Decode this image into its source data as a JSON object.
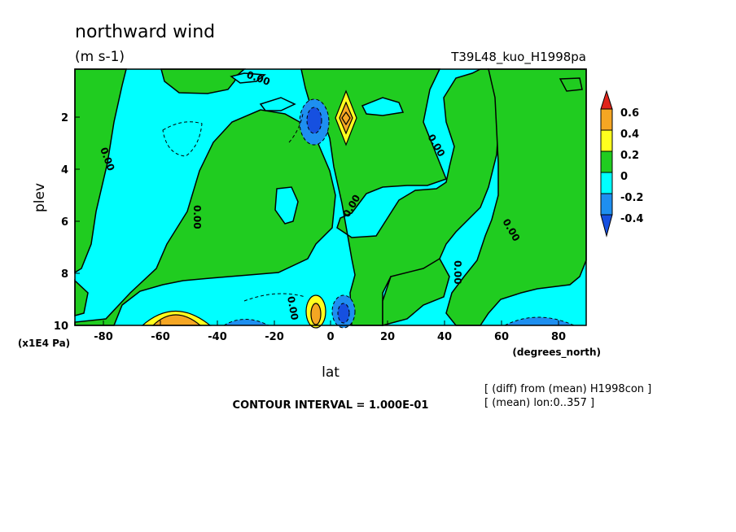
{
  "title": "northward wind",
  "units": "(m s-1)",
  "run_label": "T39L48_kuo_H1998pa",
  "chart_data": {
    "type": "heatmap",
    "variable": "northward wind",
    "xlabel": "lat",
    "x_units": "(degrees_north)",
    "ylabel": "plev",
    "y_scale": "(x1E4 Pa)",
    "xlim": [
      -90,
      90
    ],
    "ylim": [
      0,
      10
    ],
    "x_ticks": [
      "-80",
      "-60",
      "-40",
      "-20",
      "0",
      "20",
      "40",
      "60",
      "80"
    ],
    "y_ticks": [
      "2",
      "4",
      "6",
      "8",
      "10"
    ],
    "contour_interval_text": "CONTOUR INTERVAL = 1.000E-01",
    "contour_labels": [
      "0.00",
      "0.00",
      "0.00",
      "0.00",
      "0.00",
      "0.00",
      "0.00",
      "0.00"
    ],
    "colorbar": {
      "labels": [
        "0.6",
        "0.4",
        "0.2",
        "0",
        "-0.2",
        "-0.4"
      ],
      "colors": [
        "#e0241b",
        "#f5a623",
        "#ffff1e",
        "#20cc20",
        "#00ffff",
        "#1e8ff0",
        "#1650e0"
      ]
    },
    "grid": false
  },
  "notes": [
    "[ (diff) from (mean) H1998con ]",
    "[ (mean) lon:0..357 ]"
  ]
}
